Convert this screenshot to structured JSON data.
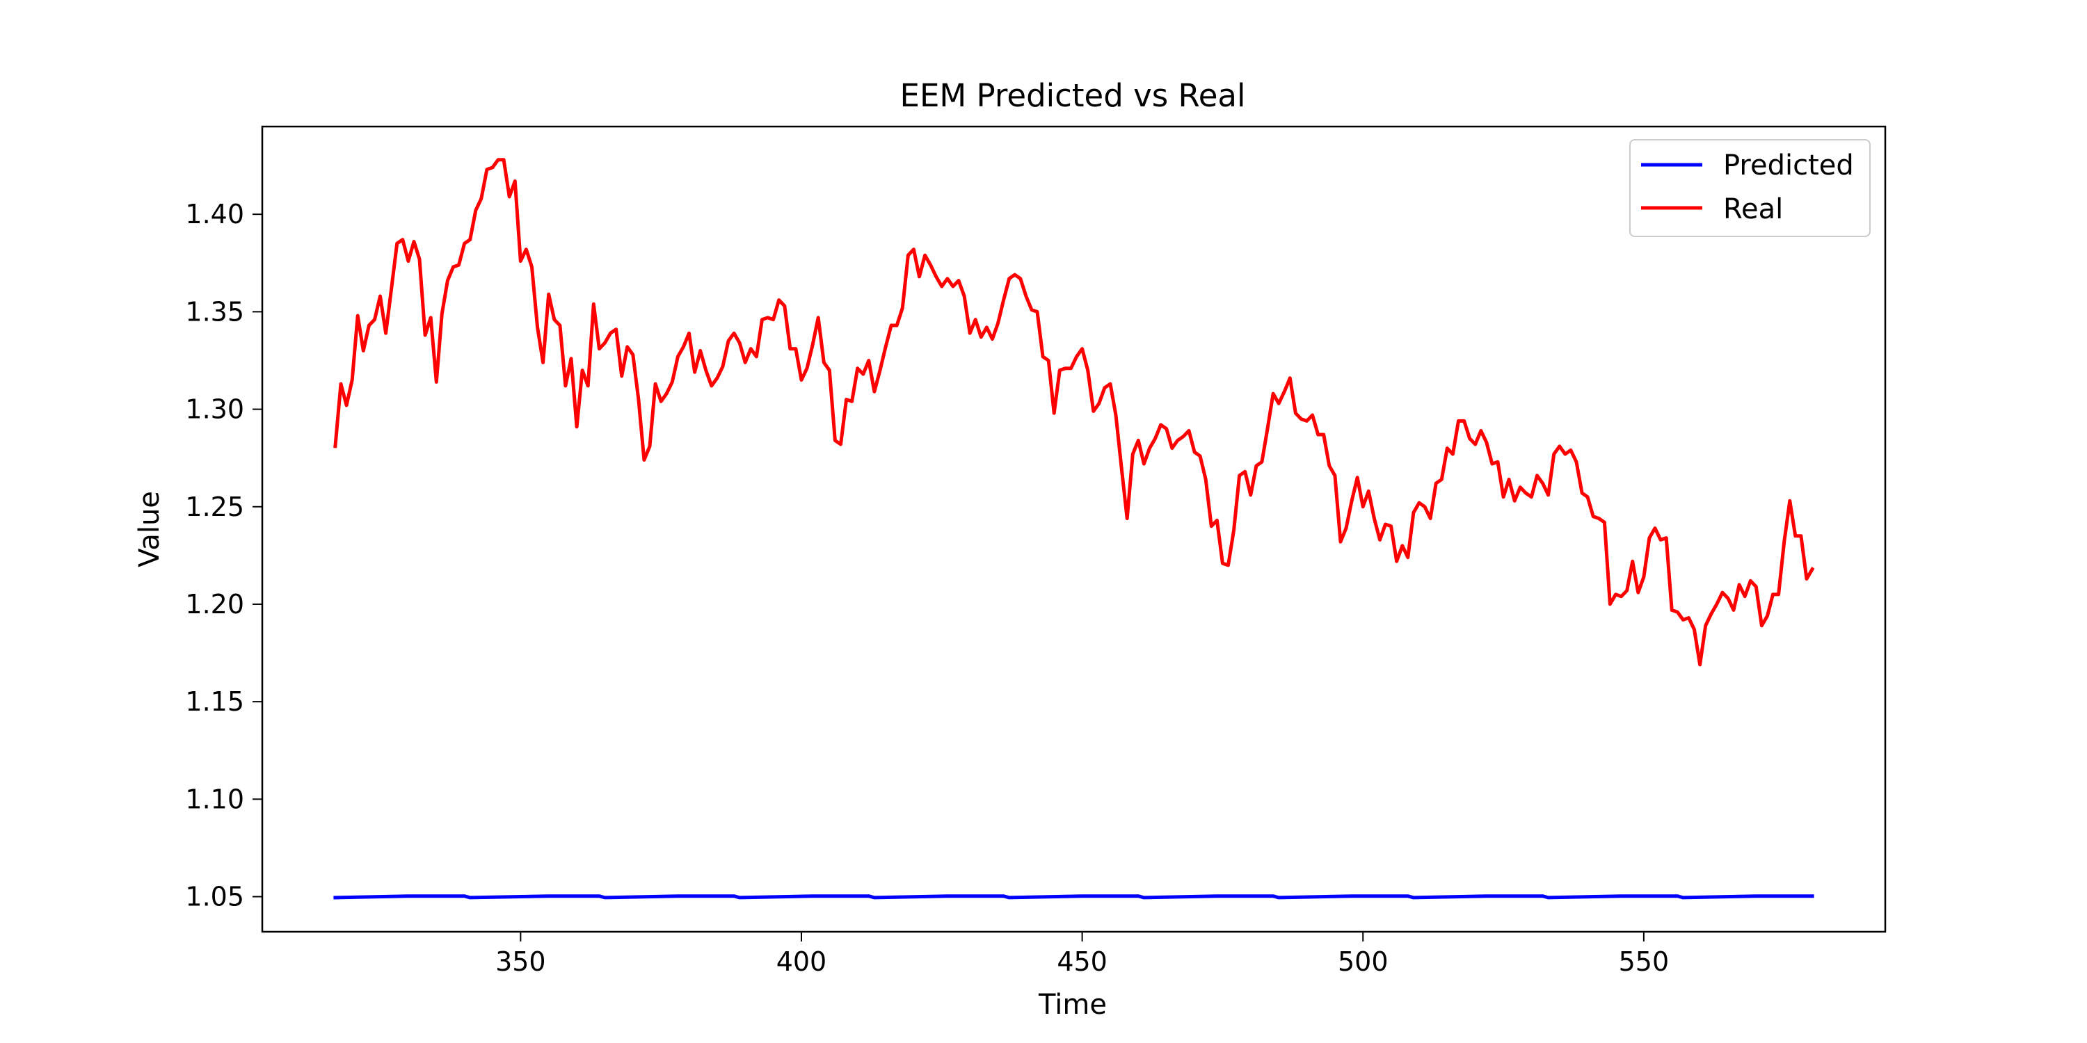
{
  "chart_data": {
    "type": "line",
    "title": "EEM Predicted vs Real",
    "xlabel": "Time",
    "ylabel": "Value",
    "xlim": [
      304,
      593
    ],
    "ylim": [
      1.032,
      1.445
    ],
    "xticks": [
      350,
      400,
      450,
      500,
      550
    ],
    "yticks": [
      1.05,
      1.1,
      1.15,
      1.2,
      1.25,
      1.3,
      1.35,
      1.4
    ],
    "grid": false,
    "legend_position": "top-right",
    "series": [
      {
        "name": "Predicted",
        "color": "#0000ff",
        "x": [
          317,
          330,
          340,
          341,
          355,
          364,
          365,
          378,
          388,
          389,
          402,
          412,
          413,
          426,
          436,
          437,
          450,
          460,
          461,
          474,
          484,
          485,
          498,
          508,
          509,
          522,
          532,
          533,
          546,
          556,
          557,
          570,
          580
        ],
        "y": [
          1.0495,
          1.0503,
          1.0503,
          1.0495,
          1.0503,
          1.0503,
          1.0495,
          1.0503,
          1.0503,
          1.0495,
          1.0503,
          1.0503,
          1.0495,
          1.0503,
          1.0503,
          1.0495,
          1.0503,
          1.0503,
          1.0495,
          1.0503,
          1.0503,
          1.0495,
          1.0503,
          1.0503,
          1.0495,
          1.0503,
          1.0503,
          1.0495,
          1.0503,
          1.0503,
          1.0495,
          1.0503,
          1.0503
        ]
      },
      {
        "name": "Real",
        "color": "#ff0000",
        "x": [
          317,
          318,
          319,
          320,
          321,
          322,
          323,
          324,
          325,
          326,
          327,
          328,
          329,
          330,
          331,
          332,
          333,
          334,
          335,
          336,
          337,
          338,
          339,
          340,
          341,
          342,
          343,
          344,
          345,
          346,
          347,
          348,
          349,
          350,
          351,
          352,
          353,
          354,
          355,
          356,
          357,
          358,
          359,
          360,
          361,
          362,
          363,
          364,
          365,
          366,
          367,
          368,
          369,
          370,
          371,
          372,
          373,
          374,
          375,
          376,
          377,
          378,
          379,
          380,
          381,
          382,
          383,
          384,
          385,
          386,
          387,
          388,
          389,
          390,
          391,
          392,
          393,
          394,
          395,
          396,
          397,
          398,
          399,
          400,
          401,
          402,
          403,
          404,
          405,
          406,
          407,
          408,
          409,
          410,
          411,
          412,
          413,
          414,
          415,
          416,
          417,
          418,
          419,
          420,
          421,
          422,
          423,
          424,
          425,
          426,
          427,
          428,
          429,
          430,
          431,
          432,
          433,
          434,
          435,
          436,
          437,
          438,
          439,
          440,
          441,
          442,
          443,
          444,
          445,
          446,
          447,
          448,
          449,
          450,
          451,
          452,
          453,
          454,
          455,
          456,
          457,
          458,
          459,
          460,
          461,
          462,
          463,
          464,
          465,
          466,
          467,
          468,
          469,
          470,
          471,
          472,
          473,
          474,
          475,
          476,
          477,
          478,
          479,
          480,
          481,
          482,
          483,
          484,
          485,
          486,
          487,
          488,
          489,
          490,
          491,
          492,
          493,
          494,
          495,
          496,
          497,
          498,
          499,
          500,
          501,
          502,
          503,
          504,
          505,
          506,
          507,
          508,
          509,
          510,
          511,
          512,
          513,
          514,
          515,
          516,
          517,
          518,
          519,
          520,
          521,
          522,
          523,
          524,
          525,
          526,
          527,
          528,
          529,
          530,
          531,
          532,
          533,
          534,
          535,
          536,
          537,
          538,
          539,
          540,
          541,
          542,
          543,
          544,
          545,
          546,
          547,
          548,
          549,
          550,
          551,
          552,
          553,
          554,
          555,
          556,
          557,
          558,
          559,
          560,
          561,
          562,
          563,
          564,
          565,
          566,
          567,
          568,
          569,
          570,
          571,
          572,
          573,
          574,
          575,
          576,
          577,
          578,
          579,
          580
        ],
        "y": [
          1.281,
          1.313,
          1.302,
          1.315,
          1.348,
          1.33,
          1.343,
          1.346,
          1.358,
          1.339,
          1.362,
          1.385,
          1.387,
          1.376,
          1.386,
          1.377,
          1.338,
          1.347,
          1.314,
          1.349,
          1.366,
          1.373,
          1.374,
          1.385,
          1.387,
          1.402,
          1.408,
          1.423,
          1.424,
          1.428,
          1.428,
          1.409,
          1.417,
          1.376,
          1.382,
          1.373,
          1.342,
          1.324,
          1.359,
          1.346,
          1.343,
          1.312,
          1.326,
          1.291,
          1.32,
          1.312,
          1.354,
          1.331,
          1.334,
          1.339,
          1.341,
          1.317,
          1.332,
          1.328,
          1.305,
          1.274,
          1.281,
          1.313,
          1.304,
          1.308,
          1.314,
          1.327,
          1.332,
          1.339,
          1.319,
          1.33,
          1.32,
          1.312,
          1.316,
          1.322,
          1.335,
          1.339,
          1.334,
          1.324,
          1.331,
          1.327,
          1.346,
          1.347,
          1.346,
          1.356,
          1.353,
          1.331,
          1.331,
          1.315,
          1.321,
          1.333,
          1.347,
          1.324,
          1.32,
          1.284,
          1.282,
          1.305,
          1.304,
          1.321,
          1.318,
          1.325,
          1.309,
          1.32,
          1.332,
          1.343,
          1.343,
          1.352,
          1.379,
          1.382,
          1.368,
          1.379,
          1.374,
          1.368,
          1.363,
          1.367,
          1.363,
          1.366,
          1.358,
          1.339,
          1.346,
          1.337,
          1.342,
          1.336,
          1.344,
          1.356,
          1.367,
          1.369,
          1.367,
          1.358,
          1.351,
          1.35,
          1.327,
          1.325,
          1.298,
          1.32,
          1.321,
          1.321,
          1.327,
          1.331,
          1.32,
          1.299,
          1.303,
          1.311,
          1.313,
          1.297,
          1.27,
          1.244,
          1.277,
          1.284,
          1.272,
          1.28,
          1.285,
          1.292,
          1.29,
          1.28,
          1.284,
          1.286,
          1.289,
          1.278,
          1.276,
          1.264,
          1.24,
          1.243,
          1.221,
          1.22,
          1.238,
          1.266,
          1.268,
          1.256,
          1.271,
          1.273,
          1.29,
          1.308,
          1.303,
          1.309,
          1.316,
          1.298,
          1.295,
          1.294,
          1.297,
          1.287,
          1.287,
          1.271,
          1.266,
          1.232,
          1.239,
          1.253,
          1.265,
          1.25,
          1.258,
          1.244,
          1.233,
          1.241,
          1.24,
          1.222,
          1.23,
          1.224,
          1.247,
          1.252,
          1.25,
          1.244,
          1.262,
          1.264,
          1.28,
          1.277,
          1.294,
          1.294,
          1.285,
          1.282,
          1.289,
          1.283,
          1.272,
          1.273,
          1.255,
          1.264,
          1.253,
          1.26,
          1.257,
          1.255,
          1.266,
          1.262,
          1.256,
          1.277,
          1.281,
          1.277,
          1.279,
          1.273,
          1.257,
          1.255,
          1.245,
          1.244,
          1.242,
          1.2,
          1.205,
          1.204,
          1.207,
          1.222,
          1.206,
          1.214,
          1.234,
          1.239,
          1.233,
          1.234,
          1.197,
          1.196,
          1.192,
          1.193,
          1.187,
          1.169,
          1.189,
          1.195,
          1.2,
          1.206,
          1.203,
          1.197,
          1.21,
          1.204,
          1.212,
          1.209,
          1.189,
          1.194,
          1.205,
          1.205,
          1.232,
          1.253,
          1.235,
          1.235,
          1.213,
          1.218
        ]
      }
    ]
  }
}
